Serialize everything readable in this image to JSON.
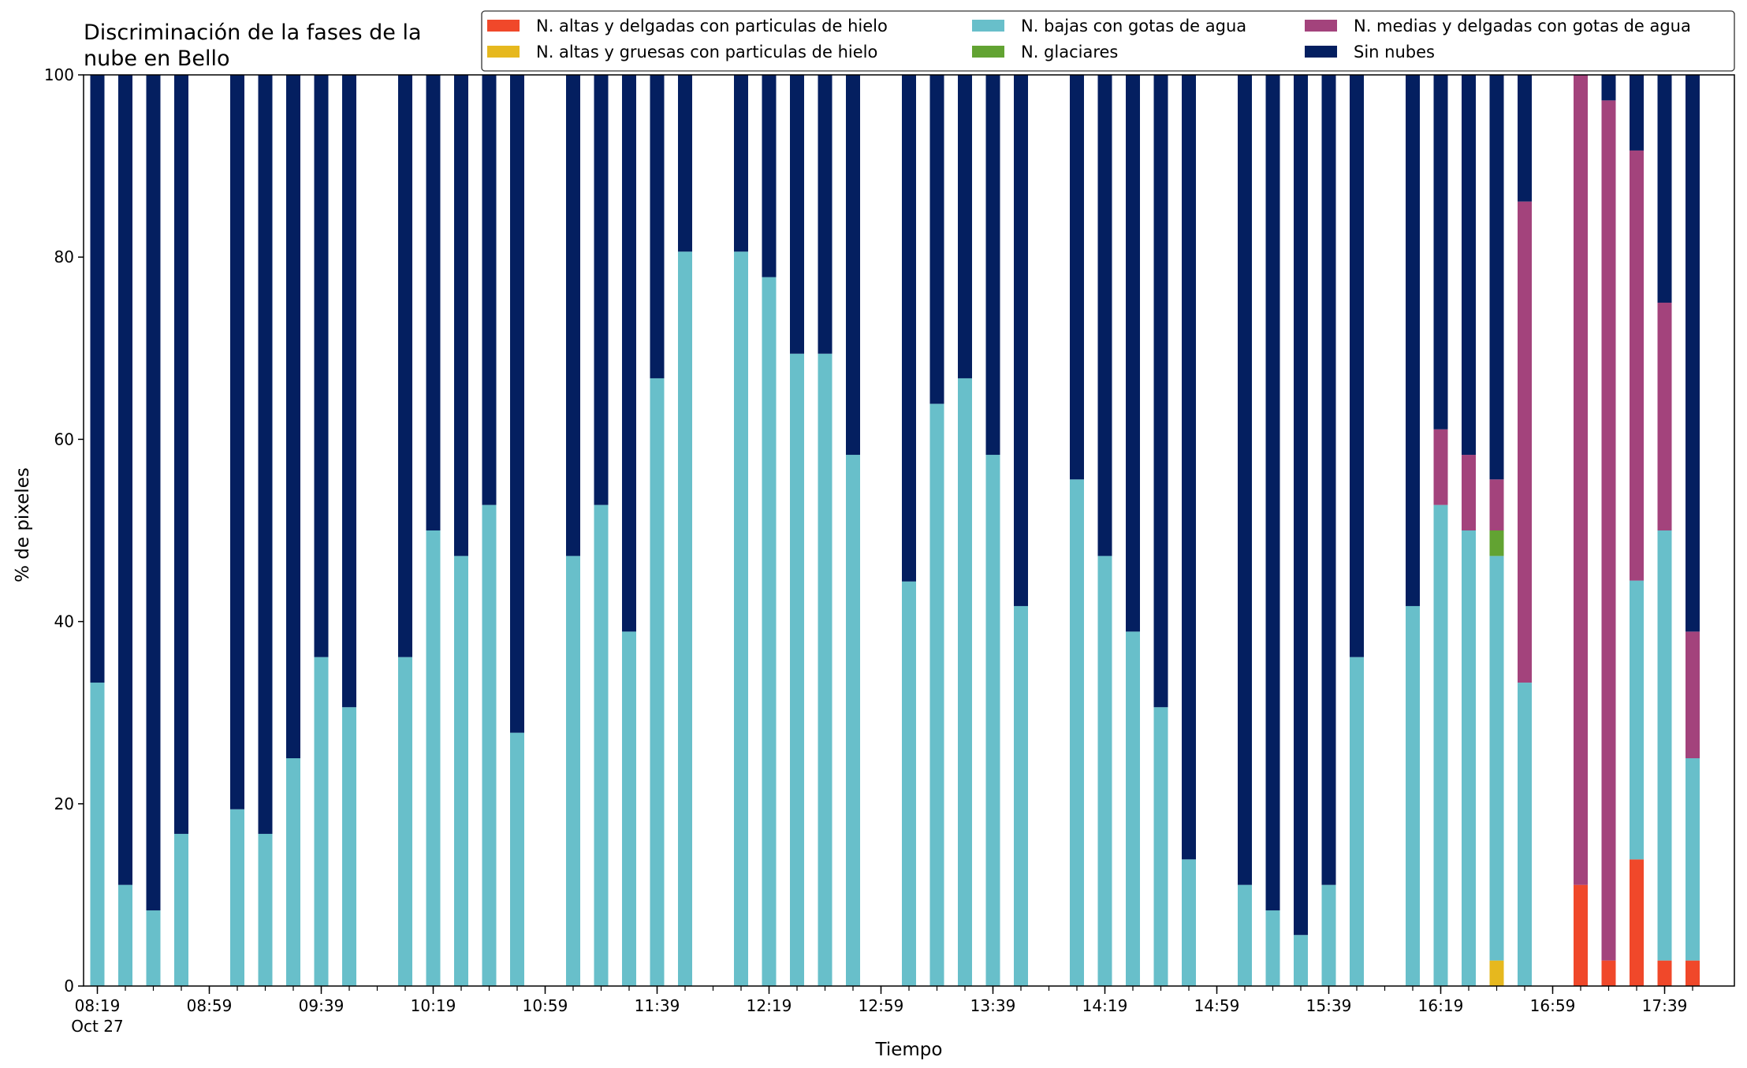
{
  "chart_data": {
    "type": "bar",
    "stacked": true,
    "title_lines": [
      "Discriminación de la fases de la",
      "nube en Bello"
    ],
    "xlabel": "Tiempo",
    "ylabel": "% de pixeles",
    "ylim": [
      0,
      100
    ],
    "yticks": [
      0,
      20,
      40,
      60,
      80,
      100
    ],
    "grid": false,
    "legend_position": "top-right",
    "x_start": "Oct 27 08:19",
    "x_step_minutes": 10,
    "x_tick_labels": [
      {
        "index": 0,
        "lines": [
          "08:19",
          "Oct 27"
        ]
      },
      {
        "index": 4,
        "lines": [
          "08:59"
        ]
      },
      {
        "index": 8,
        "lines": [
          "09:39"
        ]
      },
      {
        "index": 12,
        "lines": [
          "10:19"
        ]
      },
      {
        "index": 16,
        "lines": [
          "10:59"
        ]
      },
      {
        "index": 20,
        "lines": [
          "11:39"
        ]
      },
      {
        "index": 24,
        "lines": [
          "12:19"
        ]
      },
      {
        "index": 28,
        "lines": [
          "12:59"
        ]
      },
      {
        "index": 32,
        "lines": [
          "13:39"
        ]
      },
      {
        "index": 36,
        "lines": [
          "14:19"
        ]
      },
      {
        "index": 40,
        "lines": [
          "14:59"
        ]
      },
      {
        "index": 44,
        "lines": [
          "15:39"
        ]
      },
      {
        "index": 48,
        "lines": [
          "16:19"
        ]
      },
      {
        "index": 52,
        "lines": [
          "16:59"
        ]
      },
      {
        "index": 56,
        "lines": [
          "17:39"
        ]
      }
    ],
    "categories": [
      "08:19",
      "08:29",
      "08:39",
      "08:49",
      "08:59",
      "09:09",
      "09:19",
      "09:29",
      "09:39",
      "09:49",
      "09:59",
      "10:09",
      "10:19",
      "10:29",
      "10:39",
      "10:49",
      "10:59",
      "11:09",
      "11:19",
      "11:29",
      "11:39",
      "11:49",
      "11:59",
      "12:09",
      "12:19",
      "12:29",
      "12:39",
      "12:49",
      "12:59",
      "13:09",
      "13:19",
      "13:29",
      "13:39",
      "13:49",
      "13:59",
      "14:09",
      "14:19",
      "14:29",
      "14:39",
      "14:49",
      "14:59",
      "15:09",
      "15:19",
      "15:29",
      "15:39",
      "15:49",
      "15:59",
      "16:09",
      "16:19",
      "16:29",
      "16:39",
      "16:49",
      "16:59",
      "17:09",
      "17:19",
      "17:29",
      "17:39",
      "17:49"
    ],
    "series": [
      {
        "name": "N. altas y delgadas con particulas de hielo",
        "color": "#f0482a",
        "values": [
          0,
          0,
          0,
          0,
          null,
          0,
          0,
          0,
          0,
          0,
          null,
          0,
          0,
          0,
          0,
          0,
          null,
          0,
          0,
          0,
          0,
          0,
          null,
          0,
          0,
          0,
          0,
          0,
          null,
          0,
          0,
          0,
          0,
          0,
          null,
          0,
          0,
          0,
          0,
          0,
          null,
          0,
          0,
          0,
          0,
          0,
          null,
          0,
          0,
          0,
          0,
          0,
          null,
          11.1,
          2.8,
          13.9,
          2.8,
          2.8
        ]
      },
      {
        "name": "N. altas y gruesas con particulas de hielo",
        "color": "#e6b81e",
        "values": [
          0,
          0,
          0,
          0,
          null,
          0,
          0,
          0,
          0,
          0,
          null,
          0,
          0,
          0,
          0,
          0,
          null,
          0,
          0,
          0,
          0,
          0,
          null,
          0,
          0,
          0,
          0,
          0,
          null,
          0,
          0,
          0,
          0,
          0,
          null,
          0,
          0,
          0,
          0,
          0,
          null,
          0,
          0,
          0,
          0,
          0,
          null,
          0,
          0,
          0,
          2.8,
          0,
          null,
          0,
          0,
          0,
          0,
          0
        ]
      },
      {
        "name": "N. bajas con gotas de agua",
        "color": "#68bfca",
        "values": [
          33.3,
          11.1,
          8.3,
          16.7,
          null,
          19.4,
          16.7,
          25.0,
          36.1,
          30.6,
          null,
          36.1,
          50.0,
          47.2,
          52.8,
          27.8,
          null,
          47.2,
          52.8,
          38.9,
          66.7,
          80.6,
          null,
          80.6,
          77.8,
          69.4,
          69.4,
          58.3,
          null,
          44.4,
          63.9,
          66.7,
          58.3,
          41.7,
          null,
          55.6,
          47.2,
          38.9,
          30.6,
          13.9,
          null,
          11.1,
          8.3,
          5.6,
          11.1,
          36.1,
          null,
          41.7,
          52.8,
          50.0,
          44.4,
          33.3,
          null,
          0,
          0,
          30.6,
          47.2,
          22.2
        ]
      },
      {
        "name": "N. glaciares",
        "color": "#62a332",
        "values": [
          0,
          0,
          0,
          0,
          null,
          0,
          0,
          0,
          0,
          0,
          null,
          0,
          0,
          0,
          0,
          0,
          null,
          0,
          0,
          0,
          0,
          0,
          null,
          0,
          0,
          0,
          0,
          0,
          null,
          0,
          0,
          0,
          0,
          0,
          null,
          0,
          0,
          0,
          0,
          0,
          null,
          0,
          0,
          0,
          0,
          0,
          null,
          0,
          0,
          0,
          2.8,
          0,
          null,
          0,
          0,
          0,
          0,
          0
        ]
      },
      {
        "name": "N. medias y delgadas con gotas de agua",
        "color": "#a3437c",
        "values": [
          0,
          0,
          0,
          0,
          null,
          0,
          0,
          0,
          0,
          0,
          null,
          0,
          0,
          0,
          0,
          0,
          null,
          0,
          0,
          0,
          0,
          0,
          null,
          0,
          0,
          0,
          0,
          0,
          null,
          0,
          0,
          0,
          0,
          0,
          null,
          0,
          0,
          0,
          0,
          0,
          null,
          0,
          0,
          0,
          0,
          0,
          null,
          0,
          8.3,
          8.3,
          5.6,
          52.8,
          null,
          88.9,
          94.4,
          47.2,
          25.0,
          13.9
        ]
      },
      {
        "name": "Sin nubes",
        "color": "#041f60",
        "values": [
          66.7,
          88.9,
          91.7,
          83.3,
          null,
          80.6,
          83.3,
          75.0,
          63.9,
          69.4,
          null,
          63.9,
          50.0,
          52.8,
          47.2,
          72.2,
          null,
          52.8,
          47.2,
          61.1,
          33.3,
          19.4,
          null,
          19.4,
          22.2,
          30.6,
          30.6,
          41.7,
          null,
          55.6,
          36.1,
          33.3,
          41.7,
          58.3,
          null,
          44.4,
          52.8,
          61.1,
          69.4,
          86.1,
          null,
          88.9,
          91.7,
          94.4,
          88.9,
          63.9,
          null,
          58.3,
          38.9,
          41.7,
          44.4,
          13.9,
          null,
          0,
          2.8,
          8.3,
          25.0,
          61.1
        ]
      }
    ]
  }
}
